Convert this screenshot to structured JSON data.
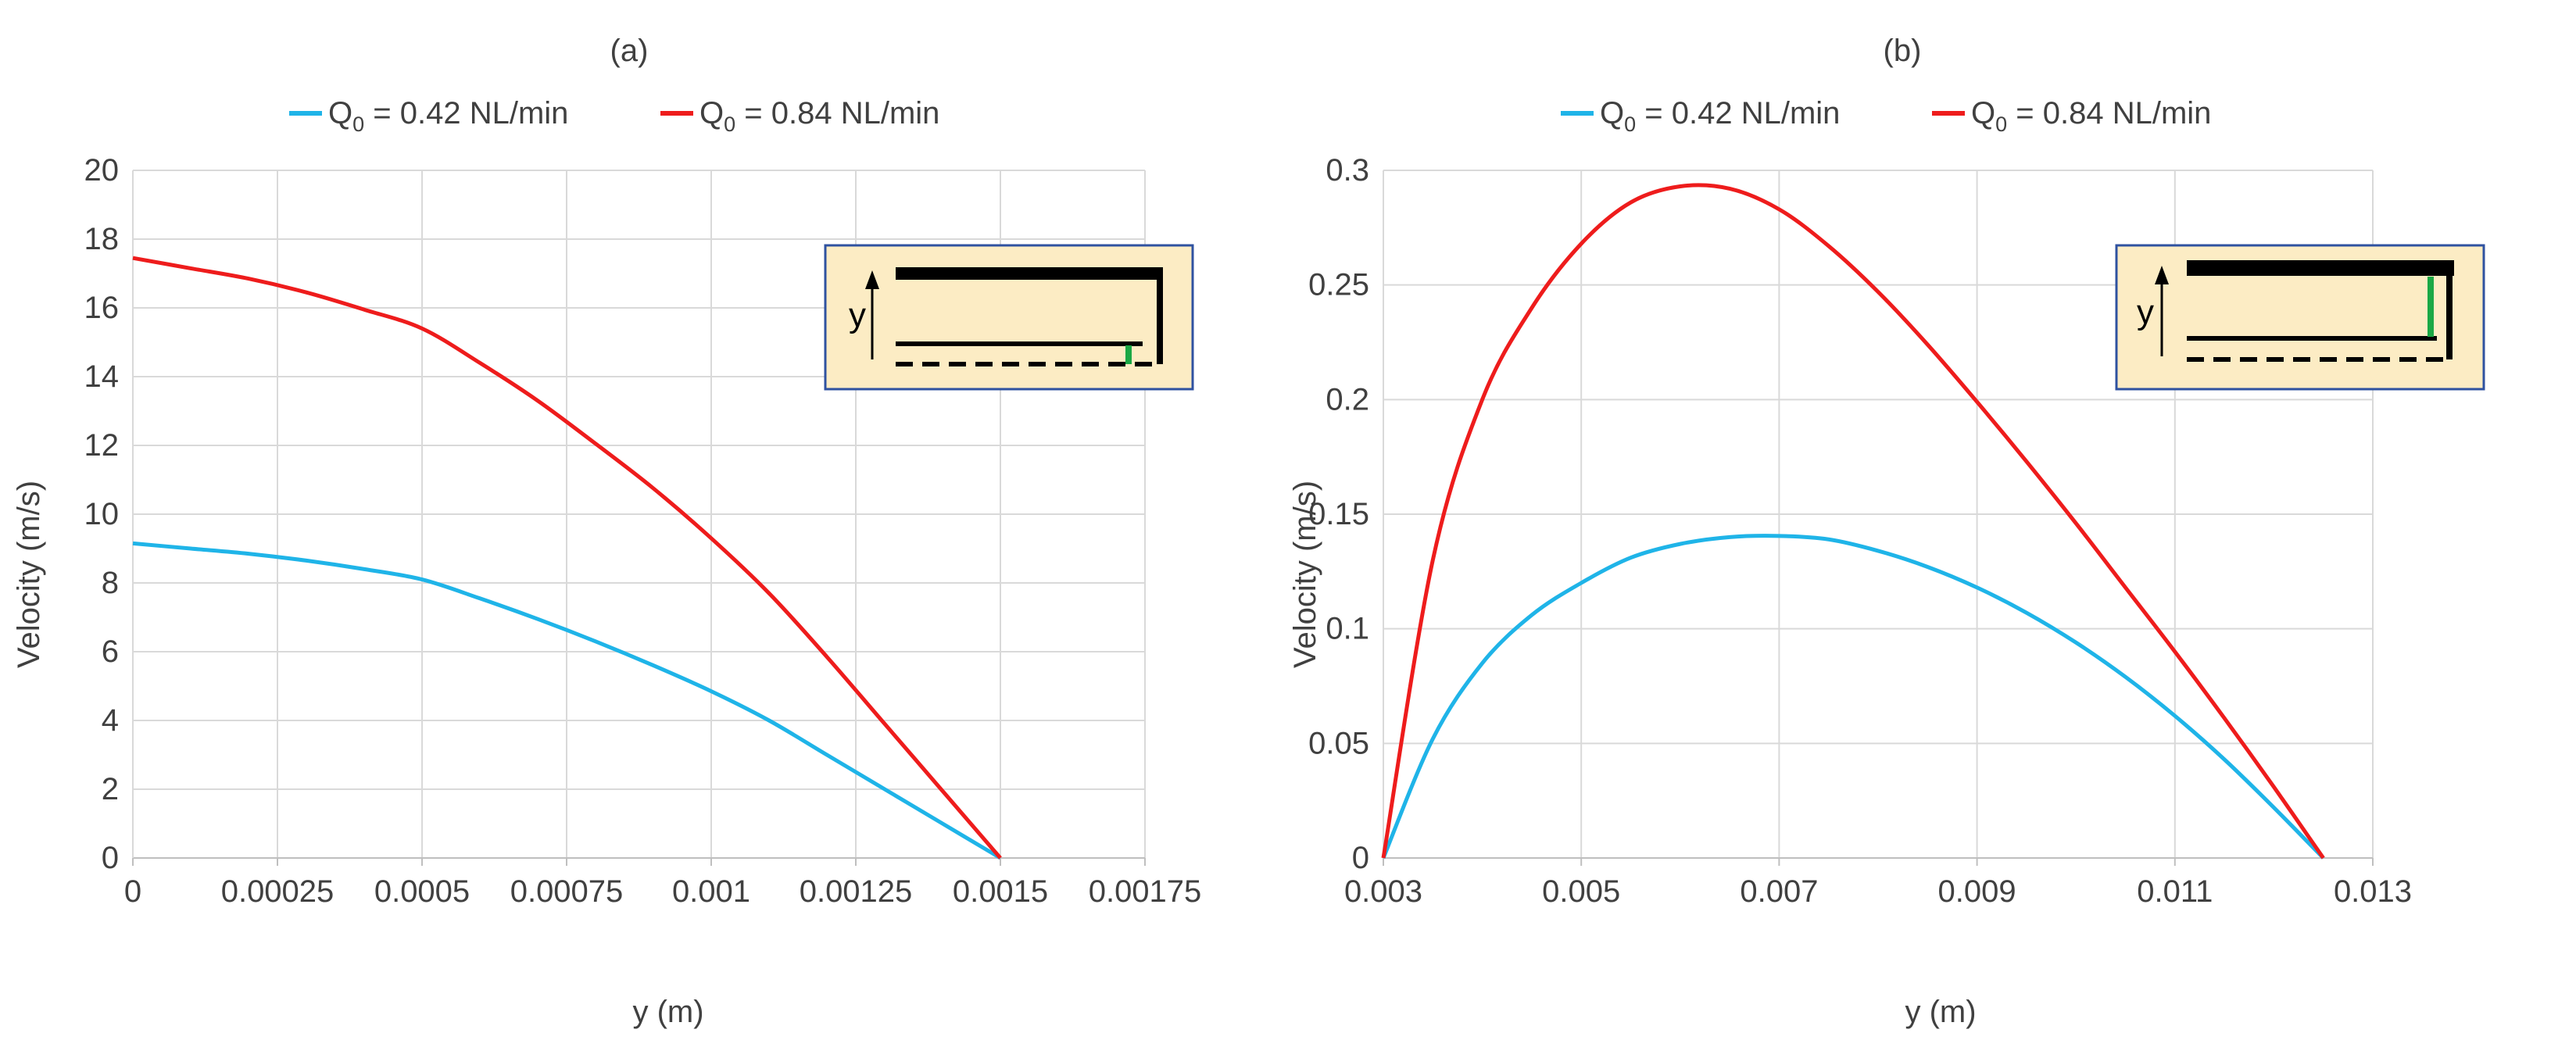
{
  "chart_data": [
    {
      "type": "line",
      "title": "(a)",
      "xlabel": "y (m)",
      "ylabel": "Velocity (m/s)",
      "xlim": [
        0,
        0.00175
      ],
      "ylim": [
        0,
        20
      ],
      "x_ticks": [
        "0",
        "0.00025",
        "0.0005",
        "0.00075",
        "0.001",
        "0.00125",
        "0.0015",
        "0.00175"
      ],
      "x_tick_values": [
        0,
        0.00025,
        0.0005,
        0.00075,
        0.001,
        0.00125,
        0.0015,
        0.00175
      ],
      "y_ticks": [
        "0",
        "2",
        "4",
        "6",
        "8",
        "10",
        "12",
        "14",
        "16",
        "18",
        "20"
      ],
      "y_tick_values": [
        0,
        2,
        4,
        6,
        8,
        10,
        12,
        14,
        16,
        18,
        20
      ],
      "grid": true,
      "legend_position": "top",
      "inset": "schematic-a",
      "series": [
        {
          "name": "Q",
          "sub": "0",
          "suffix": " = 0.42 NL/min",
          "color": "#1fb4e8",
          "x": [
            0,
            0.0001,
            0.0002,
            0.0003,
            0.0004,
            0.0005,
            0.0006,
            0.0007,
            0.0008,
            0.0009,
            0.001,
            0.0011,
            0.0012,
            0.0013,
            0.0014,
            0.0015
          ],
          "y": [
            9.15,
            9.0,
            8.85,
            8.65,
            8.4,
            8.1,
            7.55,
            6.95,
            6.3,
            5.6,
            4.85,
            4.0,
            3.0,
            2.0,
            1.0,
            0
          ]
        },
        {
          "name": "Q",
          "sub": "0",
          "suffix": " = 0.84 NL/min",
          "color": "#ee1c1c",
          "x": [
            0,
            0.0001,
            0.0002,
            0.0003,
            0.0004,
            0.0005,
            0.0006,
            0.0007,
            0.0008,
            0.0009,
            0.001,
            0.0011,
            0.0012,
            0.0013,
            0.0014,
            0.0015
          ],
          "y": [
            17.45,
            17.15,
            16.85,
            16.45,
            15.95,
            15.4,
            14.4,
            13.3,
            12.05,
            10.75,
            9.3,
            7.7,
            5.85,
            3.9,
            1.95,
            0
          ]
        }
      ]
    },
    {
      "type": "line",
      "title": "(b)",
      "xlabel": "y (m)",
      "ylabel": "Velocity (m/s)",
      "xlim": [
        0.003,
        0.013
      ],
      "ylim": [
        0,
        0.3
      ],
      "x_ticks": [
        "0.003",
        "0.005",
        "0.007",
        "0.009",
        "0.011",
        "0.013"
      ],
      "x_tick_values": [
        0.003,
        0.005,
        0.007,
        0.009,
        0.011,
        0.013
      ],
      "y_ticks": [
        "0",
        "0.05",
        "0.1",
        "0.15",
        "0.2",
        "0.25",
        "0.3"
      ],
      "y_tick_values": [
        0,
        0.05,
        0.1,
        0.15,
        0.2,
        0.25,
        0.3
      ],
      "grid": true,
      "legend_position": "top",
      "inset": "schematic-b",
      "series": [
        {
          "name": "Q",
          "sub": "0",
          "suffix": " = 0.42 NL/min",
          "color": "#1fb4e8",
          "x": [
            0.003,
            0.0035,
            0.004,
            0.0045,
            0.005,
            0.0055,
            0.006,
            0.0065,
            0.007,
            0.0075,
            0.008,
            0.0085,
            0.009,
            0.0095,
            0.01,
            0.0105,
            0.011,
            0.0115,
            0.012,
            0.0125
          ],
          "y": [
            0,
            0.052,
            0.085,
            0.106,
            0.12,
            0.131,
            0.137,
            0.14,
            0.1405,
            0.139,
            0.134,
            0.127,
            0.118,
            0.107,
            0.094,
            0.079,
            0.062,
            0.043,
            0.022,
            0
          ]
        },
        {
          "name": "Q",
          "sub": "0",
          "suffix": " = 0.84 NL/min",
          "color": "#ee1c1c",
          "x": [
            0.003,
            0.0035,
            0.004,
            0.0045,
            0.005,
            0.0055,
            0.006,
            0.0065,
            0.007,
            0.0075,
            0.008,
            0.0085,
            0.009,
            0.0095,
            0.01,
            0.0105,
            0.011,
            0.0115,
            0.012,
            0.0125
          ],
          "y": [
            0,
            0.13,
            0.2,
            0.24,
            0.268,
            0.286,
            0.293,
            0.292,
            0.283,
            0.267,
            0.247,
            0.224,
            0.199,
            0.173,
            0.146,
            0.118,
            0.09,
            0.061,
            0.031,
            0
          ]
        }
      ]
    }
  ]
}
